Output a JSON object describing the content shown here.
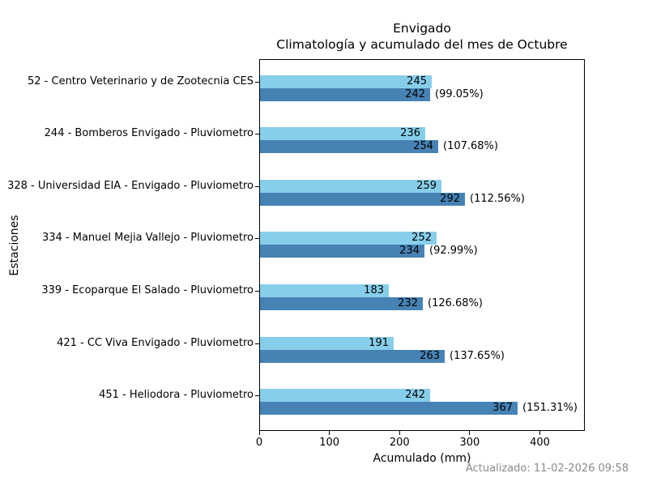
{
  "footer": {
    "updated": "Actualizado: 11-02-2026 09:58"
  },
  "colors": {
    "climatologia_bar": "#87CEEB",
    "acumulado_bar": "#4682B4",
    "axis": "#000000",
    "footer_text": "#8a8a8a"
  },
  "chart_data": {
    "type": "bar",
    "orientation": "horizontal",
    "title": "Envigado",
    "subtitle": "Climatología y acumulado del mes de Octubre",
    "xlabel": "Acumulado (mm)",
    "ylabel": "Estaciones",
    "xlim": [
      0,
      464
    ],
    "x_ticks": [
      0,
      100,
      200,
      300,
      400
    ],
    "grid": false,
    "legend": "none",
    "categories": [
      "52 - Centro Veterinario y de Zootecnia CES",
      "244 - Bomberos Envigado - Pluviometro",
      "328 - Universidad EIA - Envigado - Pluviometro",
      "334 - Manuel Mejia Vallejo - Pluviometro",
      "339 - Ecoparque El Salado - Pluviometro",
      "421 - CC Viva Envigado - Pluviometro",
      "451 - Heliodora - Pluviometro"
    ],
    "series": [
      {
        "name": "Climatología",
        "color": "#87CEEB",
        "values": [
          245,
          236,
          259,
          252,
          183,
          191,
          242
        ]
      },
      {
        "name": "Acumulado",
        "color": "#4682B4",
        "values": [
          242,
          254,
          292,
          234,
          232,
          263,
          367
        ],
        "annotations": [
          "(99.05%)",
          "(107.68%)",
          "(112.56%)",
          "(92.99%)",
          "(126.68%)",
          "(137.65%)",
          "(151.31%)"
        ]
      }
    ]
  }
}
